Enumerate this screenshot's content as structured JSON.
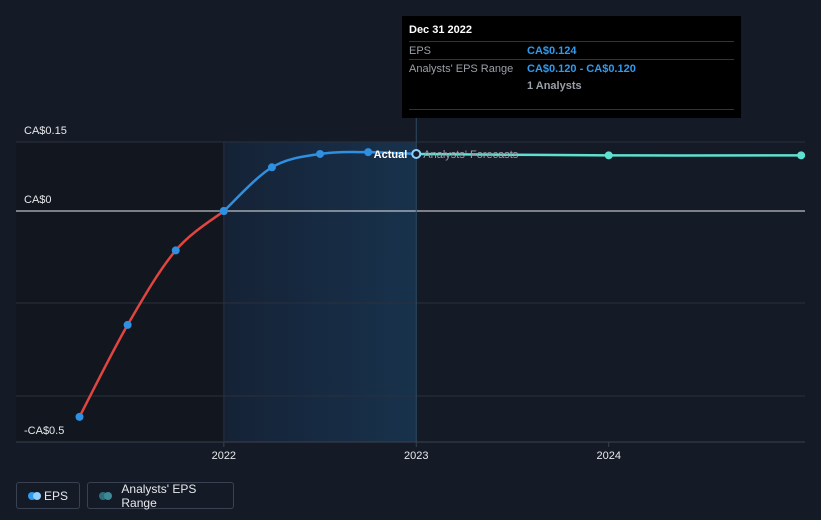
{
  "chart_data": {
    "type": "line",
    "currency_prefix": "CA$",
    "y_ticks": [
      {
        "value": 0.15,
        "label": "CA$0.15"
      },
      {
        "value": 0,
        "label": "CA$0"
      },
      {
        "value": -0.5,
        "label": "-CA$0.5"
      }
    ],
    "x_ticks": [
      {
        "value": 2022,
        "label": "2022"
      },
      {
        "value": 2023,
        "label": "2023"
      },
      {
        "value": 2024,
        "label": "2024"
      }
    ],
    "xlim": [
      2020.92,
      2025.02
    ],
    "ylim": [
      -0.5,
      0.15
    ],
    "series": [
      {
        "name": "EPS",
        "segment": "actual-negative",
        "color": "#e0453f",
        "x": [
          2021.25,
          2021.5,
          2021.75,
          2022.0
        ],
        "y": [
          -0.47,
          -0.26,
          -0.09,
          0.0
        ]
      },
      {
        "name": "EPS",
        "segment": "actual-positive",
        "color": "#2f8fe0",
        "x": [
          2022.0,
          2022.25,
          2022.5,
          2022.75,
          2023.0
        ],
        "y": [
          0.0,
          0.095,
          0.124,
          0.128,
          0.124
        ]
      },
      {
        "name": "Analysts' EPS Range",
        "segment": "forecast",
        "color": "#5fe0d0",
        "x": [
          2023.0,
          2024.0,
          2025.0
        ],
        "y": [
          0.124,
          0.121,
          0.121
        ]
      }
    ],
    "forecast_divider_x": 2023.0,
    "highlight_range": [
      2022.0,
      2023.0
    ],
    "actual_label": "Actual",
    "forecast_label": "Analysts' Forecasts"
  },
  "tooltip": {
    "date": "Dec 31 2022",
    "eps_label": "EPS",
    "eps_value": "CA$0.124",
    "range_label": "Analysts' EPS Range",
    "range_value": "CA$0.120 - CA$0.120",
    "analysts": "1 Analysts"
  },
  "legend": {
    "eps_label": "EPS",
    "range_label": "Analysts' EPS Range"
  },
  "colors": {
    "background": "#151b26",
    "eps_dot": "#2f9bf0",
    "range_dot": "#2f6f7a"
  }
}
